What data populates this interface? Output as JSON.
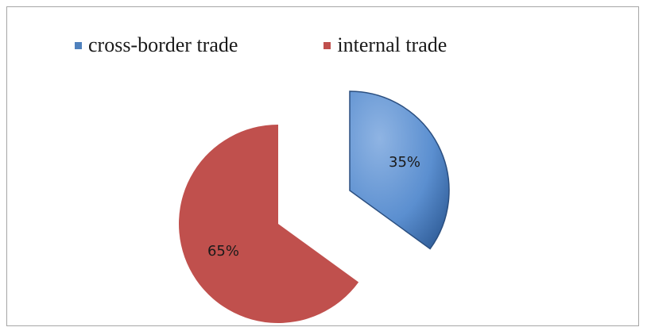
{
  "chart_data": {
    "type": "pie",
    "title": "",
    "legend_position": "top",
    "slices": [
      {
        "label": "cross-border trade",
        "value": 35,
        "display": "35%",
        "color": "#4f81bd",
        "exploded": true
      },
      {
        "label": "internal trade",
        "value": 65,
        "display": "65%",
        "color": "#c0504d",
        "exploded": false
      }
    ]
  }
}
